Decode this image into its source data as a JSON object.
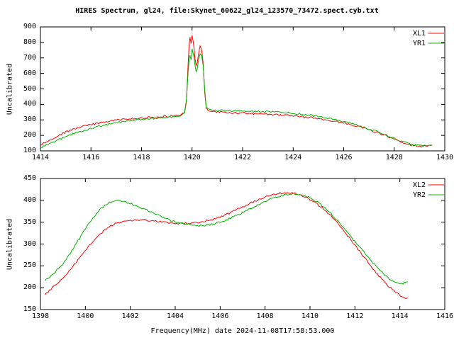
{
  "figure": {
    "title": "HIRES Spectrum, gl24, file:Skynet_60622_gl24_123570_73472.spect.cyb.txt"
  },
  "colors": {
    "background": "#ffffff",
    "axis": "#000000",
    "xl_red": "#ff0000",
    "yr_green": "#00b000"
  },
  "chart_data": [
    {
      "type": "line",
      "ylabel": "Uncalibrated",
      "xlim": [
        1414,
        1430
      ],
      "ylim": [
        100,
        900
      ],
      "xticks": [
        1414,
        1416,
        1418,
        1420,
        1422,
        1424,
        1426,
        1428,
        1430
      ],
      "yticks": [
        100,
        200,
        300,
        400,
        500,
        600,
        700,
        800,
        900
      ],
      "grid": false,
      "legend_position": "top-right",
      "series": [
        {
          "name": "XL1",
          "color": "#ff0000",
          "points": [
            [
              1414.0,
              138
            ],
            [
              1414.3,
              165
            ],
            [
              1414.6,
              190
            ],
            [
              1415.0,
              222
            ],
            [
              1415.4,
              245
            ],
            [
              1415.8,
              262
            ],
            [
              1416.2,
              276
            ],
            [
              1416.6,
              288
            ],
            [
              1417.0,
              298
            ],
            [
              1417.4,
              305
            ],
            [
              1417.8,
              310
            ],
            [
              1418.2,
              314
            ],
            [
              1418.6,
              318
            ],
            [
              1419.0,
              322
            ],
            [
              1419.3,
              327
            ],
            [
              1419.55,
              333
            ],
            [
              1419.7,
              348
            ],
            [
              1419.78,
              420
            ],
            [
              1419.84,
              640
            ],
            [
              1419.88,
              780
            ],
            [
              1419.92,
              830
            ],
            [
              1419.96,
              795
            ],
            [
              1420.0,
              840
            ],
            [
              1420.04,
              810
            ],
            [
              1420.08,
              760
            ],
            [
              1420.12,
              690
            ],
            [
              1420.16,
              650
            ],
            [
              1420.2,
              668
            ],
            [
              1420.26,
              730
            ],
            [
              1420.32,
              775
            ],
            [
              1420.38,
              745
            ],
            [
              1420.44,
              660
            ],
            [
              1420.5,
              480
            ],
            [
              1420.56,
              375
            ],
            [
              1420.64,
              358
            ],
            [
              1420.8,
              354
            ],
            [
              1421.2,
              350
            ],
            [
              1421.6,
              346
            ],
            [
              1422.0,
              343
            ],
            [
              1422.5,
              339
            ],
            [
              1423.0,
              335
            ],
            [
              1423.5,
              331
            ],
            [
              1424.0,
              326
            ],
            [
              1424.5,
              318
            ],
            [
              1425.0,
              308
            ],
            [
              1425.5,
              296
            ],
            [
              1426.0,
              281
            ],
            [
              1426.5,
              261
            ],
            [
              1427.0,
              237
            ],
            [
              1427.5,
              208
            ],
            [
              1428.0,
              176
            ],
            [
              1428.3,
              155
            ],
            [
              1428.6,
              140
            ],
            [
              1428.9,
              131
            ],
            [
              1429.2,
              129
            ],
            [
              1429.5,
              134
            ]
          ]
        },
        {
          "name": "YR1",
          "color": "#00b000",
          "points": [
            [
              1414.0,
              120
            ],
            [
              1414.3,
              143
            ],
            [
              1414.6,
              163
            ],
            [
              1415.0,
              192
            ],
            [
              1415.4,
              216
            ],
            [
              1415.8,
              236
            ],
            [
              1416.2,
              253
            ],
            [
              1416.6,
              268
            ],
            [
              1417.0,
              281
            ],
            [
              1417.4,
              291
            ],
            [
              1417.8,
              299
            ],
            [
              1418.2,
              305
            ],
            [
              1418.6,
              311
            ],
            [
              1419.0,
              317
            ],
            [
              1419.3,
              322
            ],
            [
              1419.55,
              330
            ],
            [
              1419.7,
              346
            ],
            [
              1419.78,
              430
            ],
            [
              1419.84,
              600
            ],
            [
              1419.88,
              690
            ],
            [
              1419.92,
              718
            ],
            [
              1419.96,
              690
            ],
            [
              1420.0,
              755
            ],
            [
              1420.04,
              735
            ],
            [
              1420.08,
              700
            ],
            [
              1420.12,
              650
            ],
            [
              1420.16,
              615
            ],
            [
              1420.2,
              630
            ],
            [
              1420.26,
              695
            ],
            [
              1420.32,
              730
            ],
            [
              1420.38,
              712
            ],
            [
              1420.44,
              645
            ],
            [
              1420.5,
              490
            ],
            [
              1420.56,
              385
            ],
            [
              1420.64,
              366
            ],
            [
              1420.8,
              362
            ],
            [
              1421.2,
              360
            ],
            [
              1421.6,
              358
            ],
            [
              1422.0,
              357
            ],
            [
              1422.5,
              355
            ],
            [
              1423.0,
              352
            ],
            [
              1423.5,
              348
            ],
            [
              1424.0,
              342
            ],
            [
              1424.5,
              334
            ],
            [
              1425.0,
              322
            ],
            [
              1425.5,
              307
            ],
            [
              1426.0,
              289
            ],
            [
              1426.5,
              267
            ],
            [
              1427.0,
              242
            ],
            [
              1427.5,
              213
            ],
            [
              1428.0,
              181
            ],
            [
              1428.3,
              160
            ],
            [
              1428.6,
              145
            ],
            [
              1428.9,
              136
            ],
            [
              1429.2,
              134
            ],
            [
              1429.5,
              139
            ]
          ]
        }
      ]
    },
    {
      "type": "line",
      "ylabel": "Uncalibrated",
      "xlabel": "Frequency(MHz) date 2024-11-08T17:58:53.000",
      "xlim": [
        1398,
        1416
      ],
      "ylim": [
        150,
        450
      ],
      "xticks": [
        1398,
        1400,
        1402,
        1404,
        1406,
        1408,
        1410,
        1412,
        1414,
        1416
      ],
      "yticks": [
        150,
        200,
        250,
        300,
        350,
        400,
        450
      ],
      "grid": false,
      "legend_position": "top-right",
      "series": [
        {
          "name": "XL2",
          "color": "#ff0000",
          "points": [
            [
              1398.2,
              184
            ],
            [
              1398.6,
              203
            ],
            [
              1399.0,
              222
            ],
            [
              1399.4,
              246
            ],
            [
              1399.8,
              272
            ],
            [
              1400.2,
              298
            ],
            [
              1400.6,
              320
            ],
            [
              1401.0,
              338
            ],
            [
              1401.4,
              348
            ],
            [
              1401.8,
              353
            ],
            [
              1402.2,
              355
            ],
            [
              1402.6,
              355
            ],
            [
              1403.0,
              353
            ],
            [
              1403.4,
              350
            ],
            [
              1403.8,
              348
            ],
            [
              1404.2,
              347
            ],
            [
              1404.6,
              347
            ],
            [
              1405.0,
              349
            ],
            [
              1405.4,
              353
            ],
            [
              1405.8,
              359
            ],
            [
              1406.2,
              366
            ],
            [
              1406.6,
              375
            ],
            [
              1407.0,
              385
            ],
            [
              1407.4,
              395
            ],
            [
              1407.8,
              404
            ],
            [
              1408.2,
              411
            ],
            [
              1408.6,
              416
            ],
            [
              1409.0,
              418
            ],
            [
              1409.4,
              415
            ],
            [
              1409.8,
              407
            ],
            [
              1410.2,
              396
            ],
            [
              1410.6,
              381
            ],
            [
              1411.0,
              361
            ],
            [
              1411.4,
              337
            ],
            [
              1411.8,
              311
            ],
            [
              1412.2,
              284
            ],
            [
              1412.6,
              257
            ],
            [
              1413.0,
              231
            ],
            [
              1413.4,
              208
            ],
            [
              1413.8,
              190
            ],
            [
              1414.1,
              180
            ],
            [
              1414.35,
              176
            ]
          ]
        },
        {
          "name": "YR2",
          "color": "#00b000",
          "points": [
            [
              1398.2,
              216
            ],
            [
              1398.6,
              233
            ],
            [
              1399.0,
              255
            ],
            [
              1399.4,
              285
            ],
            [
              1399.8,
              318
            ],
            [
              1400.2,
              350
            ],
            [
              1400.6,
              377
            ],
            [
              1401.0,
              394
            ],
            [
              1401.3,
              400
            ],
            [
              1401.6,
              399
            ],
            [
              1402.0,
              393
            ],
            [
              1402.4,
              385
            ],
            [
              1402.8,
              376
            ],
            [
              1403.2,
              367
            ],
            [
              1403.6,
              358
            ],
            [
              1404.0,
              351
            ],
            [
              1404.4,
              346
            ],
            [
              1404.8,
              343
            ],
            [
              1405.2,
              342
            ],
            [
              1405.6,
              345
            ],
            [
              1406.0,
              350
            ],
            [
              1406.4,
              358
            ],
            [
              1406.8,
              367
            ],
            [
              1407.2,
              377
            ],
            [
              1407.6,
              388
            ],
            [
              1408.0,
              398
            ],
            [
              1408.4,
              406
            ],
            [
              1408.8,
              412
            ],
            [
              1409.2,
              415
            ],
            [
              1409.6,
              413
            ],
            [
              1410.0,
              406
            ],
            [
              1410.4,
              394
            ],
            [
              1410.8,
              377
            ],
            [
              1411.2,
              355
            ],
            [
              1411.6,
              331
            ],
            [
              1412.0,
              306
            ],
            [
              1412.4,
              281
            ],
            [
              1412.8,
              257
            ],
            [
              1413.2,
              235
            ],
            [
              1413.6,
              218
            ],
            [
              1414.0,
              208
            ],
            [
              1414.35,
              213
            ]
          ]
        }
      ]
    }
  ]
}
